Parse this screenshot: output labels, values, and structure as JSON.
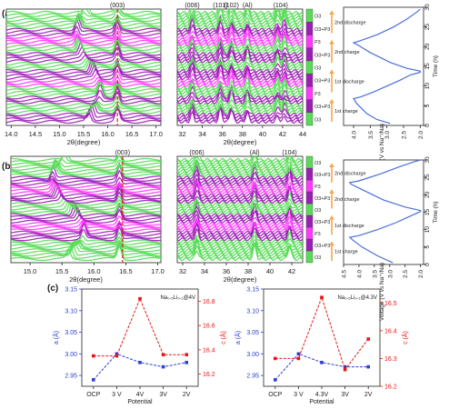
{
  "panel_labels": {
    "a": "(a)",
    "b": "(b)",
    "c": "(c)"
  },
  "colors": {
    "purple": "#9b1fb5",
    "green": "#58dc58",
    "magenta": "#ff39ff",
    "white": "#ffffff",
    "black": "#1a1a1a",
    "refline": "#e8201a",
    "voltage": "#4a6fd6",
    "arrow": "#f4a64a",
    "red_series": "#e81515",
    "blue_series": "#2b3fd1"
  },
  "chart_data": [
    {
      "id": "a-left",
      "type": "line",
      "xlabel": "2θ(degree)",
      "xlim": [
        13.9,
        17.1
      ],
      "xticks": [
        "14.0",
        "14.5",
        "15.0",
        "15.5",
        "16.0",
        "16.5",
        "17.0"
      ],
      "annotations": [
        {
          "text": "(003)",
          "x": 16.2
        }
      ],
      "refline_x": 16.2,
      "peaks": [
        15.6,
        16.2
      ],
      "n_curves": 46,
      "color_bands": [
        "purple",
        "green",
        "purple",
        "green",
        "magenta",
        "purple",
        "green",
        "purple",
        "green",
        "magenta",
        "purple",
        "green",
        "green"
      ]
    },
    {
      "id": "a-right",
      "type": "line",
      "xlabel": "2θ(degree)",
      "xlim": [
        31.5,
        44
      ],
      "xticks": [
        "32",
        "34",
        "36",
        "38",
        "40",
        "42",
        "44"
      ],
      "annotations": [
        {
          "text": "(006)",
          "x": 33
        },
        {
          "text": "(101)",
          "x": 35.8
        },
        {
          "text": "(102)",
          "x": 36.9
        },
        {
          "text": "(Al)",
          "x": 38.5
        },
        {
          "text": "(104)",
          "x": 41.8
        }
      ],
      "peaks": [
        33,
        35.8,
        36.9,
        38.5,
        41.5,
        42.2
      ],
      "n_curves": 46,
      "color_bands": [
        "purple",
        "green",
        "purple",
        "green",
        "magenta",
        "purple",
        "green",
        "purple",
        "green",
        "magenta",
        "purple",
        "green",
        "green"
      ]
    },
    {
      "id": "a-voltage",
      "type": "line",
      "xlabel": "Voltage (V vs Na⁺/Na)",
      "ylabel": "Time (h)",
      "xlim": [
        4.3,
        1.9
      ],
      "ylim": [
        0,
        30
      ],
      "xticks": [
        "4.0",
        "3.5",
        "3.0",
        "2.5",
        "2.0"
      ],
      "yticks": [
        "0",
        "5",
        "10",
        "15",
        "20",
        "25",
        "30"
      ],
      "x": [
        2.9,
        3.3,
        3.6,
        3.9,
        4.0,
        3.8,
        3.4,
        3.0,
        2.6,
        2.3,
        2.0,
        2.0,
        2.4,
        2.9,
        3.5,
        3.85,
        4.0,
        3.8,
        3.3,
        2.8,
        2.4,
        2.1,
        2.0
      ],
      "y": [
        0.5,
        1.5,
        3,
        5.5,
        6.8,
        7.2,
        8.5,
        10,
        11.5,
        12.8,
        13.5,
        13.8,
        14.5,
        16,
        18.5,
        20.3,
        21,
        21.5,
        23,
        25,
        27,
        28.8,
        29.5
      ],
      "step_labels": [
        "1st charge",
        "1st discharge",
        "2nd charge",
        "2nd discharge"
      ],
      "phase_labels": [
        "O3",
        "O3+P3",
        "P3",
        "O3+P3",
        "O3",
        "O3+P3",
        "P3",
        "O3+P3",
        "O3"
      ],
      "phase_colors": [
        "green",
        "purple",
        "magenta",
        "purple",
        "green",
        "purple",
        "magenta",
        "purple",
        "green"
      ]
    },
    {
      "id": "b-left",
      "type": "line",
      "xlabel": "2θ(degree)",
      "xlim": [
        14.7,
        17.05
      ],
      "xticks": [
        "15.0",
        "15.5",
        "16.0",
        "16.5",
        "17.0"
      ],
      "annotations": [
        {
          "text": "(003)",
          "x": 16.45
        }
      ],
      "refline_x": 16.45,
      "peaks": [
        15.6,
        16.4
      ],
      "n_curves": 46,
      "color_bands": [
        "green",
        "green",
        "purple",
        "magenta",
        "purple",
        "green",
        "purple",
        "magenta",
        "purple",
        "green",
        "green"
      ]
    },
    {
      "id": "b-right",
      "type": "line",
      "xlabel": "2θ(degree)",
      "xlim": [
        31.5,
        43
      ],
      "xticks": [
        "32",
        "34",
        "36",
        "38",
        "40",
        "42"
      ],
      "annotations": [
        {
          "text": "(006)",
          "x": 33.3
        },
        {
          "text": "(Al)",
          "x": 38.6
        },
        {
          "text": "(104)",
          "x": 41.8
        }
      ],
      "peaks": [
        33.3,
        38.6,
        41.8
      ],
      "n_curves": 46,
      "color_bands": [
        "green",
        "green",
        "purple",
        "magenta",
        "purple",
        "green",
        "purple",
        "magenta",
        "purple",
        "green",
        "green"
      ]
    },
    {
      "id": "b-voltage",
      "type": "line",
      "xlabel": "Voltage (V vs Na⁺/Na)",
      "ylabel": "Time (h)",
      "xlim": [
        4.5,
        1.9
      ],
      "ylim": [
        0,
        30
      ],
      "xticks": [
        "4.5",
        "4.0",
        "3.5",
        "3.0",
        "2.5",
        "2.0"
      ],
      "yticks": [
        "0",
        "5",
        "10",
        "15",
        "20",
        "25",
        "30"
      ],
      "x": [
        2.9,
        3.4,
        3.9,
        4.2,
        4.3,
        4.0,
        3.4,
        2.8,
        2.3,
        2.0,
        2.0,
        2.5,
        3.2,
        3.9,
        4.25,
        4.3,
        4.0,
        3.3,
        2.7,
        2.2,
        2.0
      ],
      "y": [
        0.5,
        2.5,
        5,
        7,
        7.8,
        8.3,
        10,
        12,
        14,
        15.2,
        15.5,
        16.5,
        18.5,
        21.5,
        23,
        23.5,
        24,
        26,
        28,
        29.5,
        30
      ],
      "step_labels": [
        "1st charge",
        "1st discharge",
        "2nd charge",
        "2nd discharge"
      ],
      "phase_labels": [
        "O3",
        "O3+P3",
        "P3",
        "O3+P3",
        "O3",
        "O3+P3",
        "P3",
        "O3+P3",
        "O3"
      ],
      "phase_colors": [
        "green",
        "purple",
        "magenta",
        "purple",
        "green",
        "purple",
        "magenta",
        "purple",
        "green"
      ]
    },
    {
      "id": "c-left",
      "type": "line",
      "title": "Na₀.₅Li₀.₁@4V",
      "categories": [
        "OCP",
        "3 V",
        "4V",
        "3V",
        "2V"
      ],
      "xlabel": "Potential",
      "ylabel_left": "a (Å)",
      "ylabel_right": "c (Å)",
      "ylim_left": [
        2.925,
        3.15
      ],
      "yticks_left": [
        "2.95",
        "3.00",
        "3.05",
        "3.10",
        "3.15"
      ],
      "ylim_right": [
        16.1,
        16.9
      ],
      "yticks_right": [
        "16.2",
        "16.4",
        "16.6",
        "16.8"
      ],
      "series": [
        {
          "name": "a",
          "axis": "left",
          "color": "blue_series",
          "values": [
            2.94,
            3.0,
            2.98,
            2.97,
            2.98
          ]
        },
        {
          "name": "c",
          "axis": "right",
          "color": "red_series",
          "values": [
            16.35,
            16.35,
            16.82,
            16.36,
            16.36
          ]
        }
      ]
    },
    {
      "id": "c-right",
      "type": "line",
      "title": "Na₀.₅Li₀.₁@4.3V",
      "categories": [
        "OCP",
        "3 V",
        "4.3V",
        "3V",
        "2V"
      ],
      "xlabel": "Potential",
      "ylabel_left": "a (Å)",
      "ylabel_right": "c (Å)",
      "ylim_left": [
        2.925,
        3.15
      ],
      "yticks_left": [
        "2.95",
        "3.00",
        "3.05",
        "3.10",
        "3.15"
      ],
      "ylim_right": [
        16.2,
        16.55
      ],
      "yticks_right": [
        "16.2",
        "16.3",
        "16.4",
        "16.5"
      ],
      "series": [
        {
          "name": "a",
          "axis": "left",
          "color": "blue_series",
          "values": [
            2.94,
            3.0,
            2.98,
            2.97,
            2.97
          ]
        },
        {
          "name": "c",
          "axis": "right",
          "color": "red_series",
          "values": [
            16.3,
            16.3,
            16.52,
            16.26,
            16.37
          ]
        }
      ]
    }
  ]
}
